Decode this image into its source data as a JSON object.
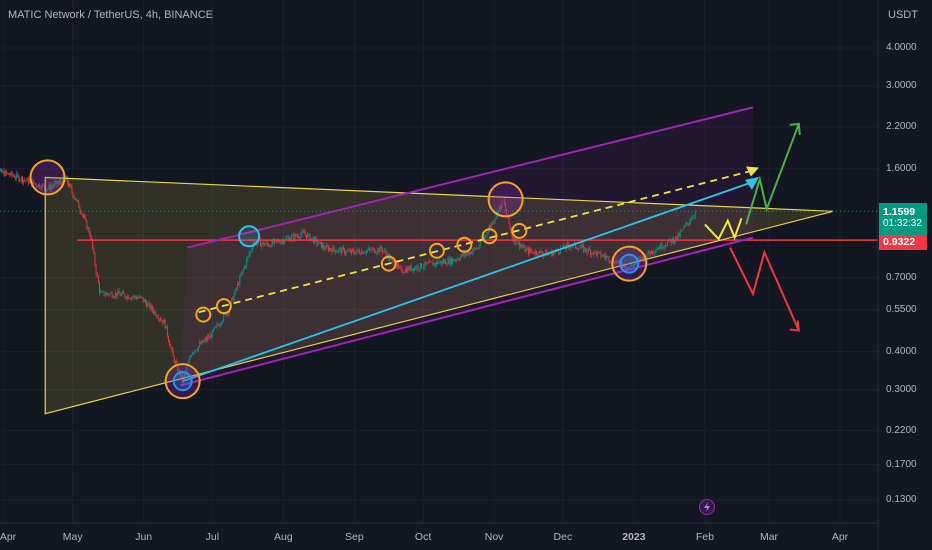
{
  "header": {
    "title": "MATIC Network / TetherUS, 4h, BINANCE"
  },
  "chart_data": {
    "type": "line",
    "title": "MATIC Network / TetherUS, 4h, BINANCE",
    "scale": "log",
    "y_unit": "USDT",
    "ylim": [
      0.11,
      5.0
    ],
    "y_ticks": [
      {
        "value": 4.0,
        "label": "4.0000"
      },
      {
        "value": 3.0,
        "label": "3.0000"
      },
      {
        "value": 2.2,
        "label": "2.2000"
      },
      {
        "value": 1.6,
        "label": "1.6000"
      },
      {
        "value": 0.7,
        "label": "0.7000"
      },
      {
        "value": 0.55,
        "label": "0.5500"
      },
      {
        "value": 0.4,
        "label": "0.4000"
      },
      {
        "value": 0.3,
        "label": "0.3000"
      },
      {
        "value": 0.22,
        "label": "0.2200"
      },
      {
        "value": 0.17,
        "label": "0.1700"
      },
      {
        "value": 0.13,
        "label": "0.1300"
      }
    ],
    "x_ticks": [
      "Apr",
      "May",
      "Jun",
      "Jul",
      "Aug",
      "Sep",
      "Oct",
      "Nov",
      "Dec",
      "2023",
      "Feb",
      "Mar",
      "Apr"
    ],
    "last_price": "1.1599",
    "countdown": "01:32:32",
    "support_level": "0.9322",
    "colors": {
      "up": "#089981",
      "down": "#f23645",
      "triangle": "#e8d44d",
      "channel": "#9c27b0",
      "trend": "#2ec5e8",
      "support": "#f23645",
      "bull_arrow": "#4caf50",
      "bear_arrow": "#f23645",
      "circle": "#f5a623"
    },
    "series": [
      {
        "x": [
          "2022-03-25",
          "2022-04-05",
          "2022-04-20",
          "2022-04-28",
          "2022-05-05",
          "2022-05-09",
          "2022-05-11",
          "2022-05-13",
          "2022-05-20",
          "2022-05-31",
          "2022-06-10",
          "2022-06-14",
          "2022-06-18",
          "2022-06-22",
          "2022-06-30",
          "2022-07-08",
          "2022-07-19",
          "2022-07-25",
          "2022-08-10",
          "2022-08-19",
          "2022-08-30",
          "2022-09-13",
          "2022-09-21",
          "2022-10-05",
          "2022-10-14",
          "2022-10-25",
          "2022-11-05",
          "2022-11-09",
          "2022-11-15",
          "2022-11-25",
          "2022-12-05",
          "2022-12-20",
          "2022-12-30",
          "2023-01-10",
          "2023-01-20",
          "2023-01-28"
        ],
        "values": [
          1.6,
          1.52,
          1.38,
          1.48,
          1.15,
          0.95,
          0.75,
          0.62,
          0.62,
          0.6,
          0.5,
          0.38,
          0.32,
          0.4,
          0.45,
          0.55,
          0.92,
          0.9,
          0.98,
          0.88,
          0.85,
          0.87,
          0.74,
          0.78,
          0.8,
          0.88,
          1.25,
          0.95,
          0.86,
          0.84,
          0.9,
          0.82,
          0.76,
          0.87,
          0.95,
          1.16
        ]
      }
    ],
    "annotations": {
      "triangle": [
        [
          "2022-04-19",
          1.5
        ],
        [
          "2022-04-19",
          0.25
        ],
        [
          "2023-03-29",
          1.16
        ]
      ],
      "channel_upper": [
        [
          "2022-06-20",
          0.88
        ],
        [
          "2023-02-22",
          2.55
        ]
      ],
      "channel_lower": [
        [
          "2022-06-17",
          0.31
        ],
        [
          "2023-02-22",
          0.95
        ]
      ],
      "trend_line": [
        [
          "2022-06-18",
          0.32
        ],
        [
          "2023-02-22",
          1.45
        ]
      ],
      "dashed_line": [
        [
          "2022-06-25",
          0.54
        ],
        [
          "2023-02-22",
          1.58
        ]
      ],
      "support_line": [
        [
          "2022-05-03",
          0.9322
        ],
        [
          "2023-04-10",
          0.9322
        ]
      ],
      "circles": [
        {
          "x": "2022-04-20",
          "y": 1.5,
          "type": "orange",
          "size": "big"
        },
        {
          "x": "2022-06-18",
          "y": 0.32,
          "type": "double",
          "size": "big"
        },
        {
          "x": "2022-07-17",
          "y": 0.96,
          "type": "teal",
          "size": "medium"
        },
        {
          "x": "2022-11-06",
          "y": 1.27,
          "type": "orange",
          "size": "big"
        },
        {
          "x": "2022-12-30",
          "y": 0.78,
          "type": "double",
          "size": "big"
        },
        {
          "x": "2022-06-27",
          "y": 0.53,
          "type": "orange",
          "size": "small"
        },
        {
          "x": "2022-07-06",
          "y": 0.565,
          "type": "orange",
          "size": "small"
        },
        {
          "x": "2022-09-16",
          "y": 0.78,
          "type": "orange",
          "size": "small"
        },
        {
          "x": "2022-10-07",
          "y": 0.86,
          "type": "orange",
          "size": "small"
        },
        {
          "x": "2022-10-19",
          "y": 0.9,
          "type": "orange",
          "size": "small"
        },
        {
          "x": "2022-10-30",
          "y": 0.96,
          "type": "orange",
          "size": "small"
        },
        {
          "x": "2022-11-12",
          "y": 1.0,
          "type": "orange",
          "size": "small"
        }
      ],
      "projection_zigzag": [
        [
          "2023-02-01",
          1.05
        ],
        [
          "2023-02-07",
          0.94
        ],
        [
          "2023-02-11",
          1.08
        ],
        [
          "2023-02-14",
          0.95
        ],
        [
          "2023-02-17",
          1.1
        ]
      ],
      "bull_path": [
        [
          "2023-02-19",
          1.05
        ],
        [
          "2023-02-25",
          1.48
        ],
        [
          "2023-02-28",
          1.18
        ],
        [
          "2023-03-14",
          2.25
        ]
      ],
      "bear_path": [
        [
          "2023-02-12",
          0.88
        ],
        [
          "2023-02-22",
          0.62
        ],
        [
          "2023-02-27",
          0.85
        ],
        [
          "2023-03-14",
          0.47
        ]
      ]
    }
  }
}
